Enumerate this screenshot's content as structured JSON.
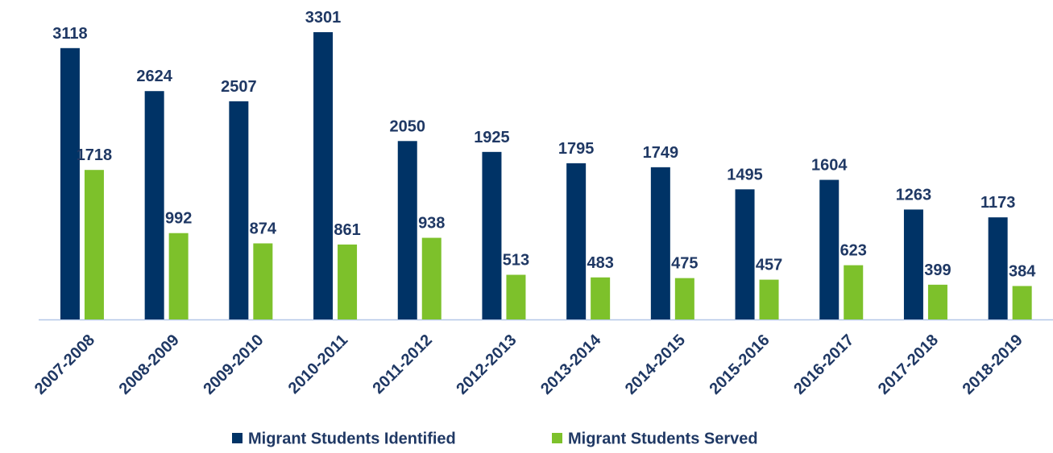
{
  "chart_data": {
    "type": "bar",
    "categories": [
      "2007-2008",
      "2008-2009",
      "2009-2010",
      "2010-2011",
      "2011-2012",
      "2012-2013",
      "2013-2014",
      "2014-2015",
      "2015-2016",
      "2016-2017",
      "2017-2018",
      "2018-2019"
    ],
    "series": [
      {
        "name": "Migrant Students Identified",
        "color": "#003366",
        "values": [
          3118,
          2624,
          2507,
          3301,
          2050,
          1925,
          1795,
          1749,
          1495,
          1604,
          1263,
          1173
        ]
      },
      {
        "name": "Migrant Students Served",
        "color": "#7dc12b",
        "values": [
          1718,
          992,
          874,
          861,
          938,
          513,
          483,
          475,
          457,
          623,
          399,
          384
        ]
      }
    ],
    "legend": "bottom"
  }
}
